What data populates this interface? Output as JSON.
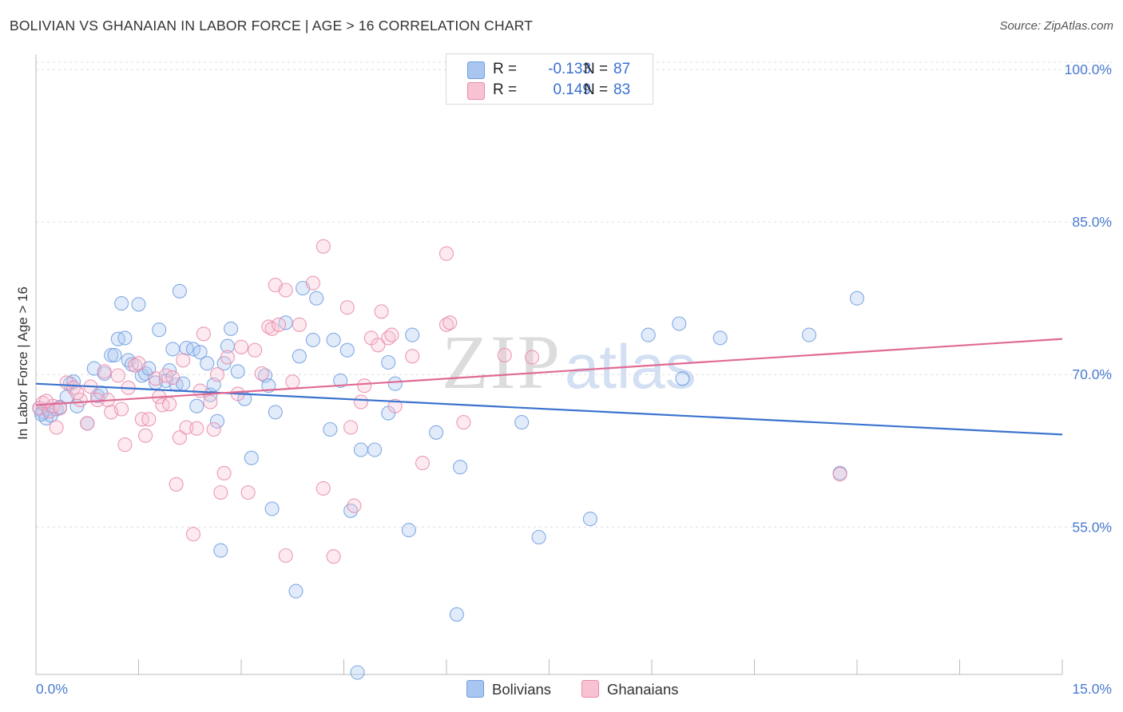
{
  "header": {
    "title": "BOLIVIAN VS GHANAIAN IN LABOR FORCE | AGE > 16 CORRELATION CHART",
    "source": "Source: ZipAtlas.com"
  },
  "legend": {
    "rows": [
      {
        "r_label": "R =",
        "r_value": "-0.133",
        "n_label": "N =",
        "n_value": "87",
        "color": "#a9c6f0",
        "border": "#6f9de0"
      },
      {
        "r_label": "R =",
        "r_value": "0.149",
        "n_label": "N =",
        "n_value": "83",
        "color": "#f7c3d3",
        "border": "#e98aa8"
      }
    ],
    "bottom": [
      {
        "label": "Bolivians",
        "color": "#a9c6f0",
        "border": "#6f9de0"
      },
      {
        "label": "Ghanaians",
        "color": "#f7c3d3",
        "border": "#e98aa8"
      }
    ]
  },
  "watermark": {
    "zip": "ZIP",
    "atlas": "atlas"
  },
  "chart_data": {
    "type": "scatter",
    "title": "BOLIVIAN VS GHANAIAN IN LABOR FORCE | AGE > 16 CORRELATION CHART",
    "xlabel": "",
    "ylabel": "In Labor Force | Age > 16",
    "xlim": [
      0,
      15
    ],
    "ylim": [
      40.5,
      101.5
    ],
    "x_tick_labels": [
      "0.0%",
      "15.0%"
    ],
    "y_ticks": [
      55,
      70,
      85,
      100
    ],
    "y_tick_labels": [
      "55.0%",
      "70.0%",
      "85.0%",
      "100.0%"
    ],
    "grid": true,
    "legend_position": "top-center",
    "series": [
      {
        "name": "Bolivians",
        "color": "#6f9de0",
        "trend": {
          "x": [
            0,
            15
          ],
          "y": [
            69.1,
            64.1
          ]
        },
        "points": [
          [
            0.05,
            66.7
          ],
          [
            0.1,
            66.3
          ],
          [
            0.15,
            65.7
          ],
          [
            0.18,
            66.6
          ],
          [
            0.22,
            66.0
          ],
          [
            0.3,
            66.6
          ],
          [
            0.35,
            66.8
          ],
          [
            0.45,
            67.8
          ],
          [
            0.5,
            69.1
          ],
          [
            0.55,
            69.3
          ],
          [
            0.6,
            66.9
          ],
          [
            0.75,
            65.2
          ],
          [
            0.85,
            70.6
          ],
          [
            0.9,
            67.9
          ],
          [
            0.95,
            68.2
          ],
          [
            1.0,
            70.1
          ],
          [
            1.1,
            71.9
          ],
          [
            1.15,
            71.9
          ],
          [
            1.2,
            73.5
          ],
          [
            1.25,
            77.0
          ],
          [
            1.3,
            73.6
          ],
          [
            1.35,
            71.4
          ],
          [
            1.4,
            71.0
          ],
          [
            1.5,
            76.9
          ],
          [
            1.55,
            69.9
          ],
          [
            1.6,
            70.1
          ],
          [
            1.65,
            70.6
          ],
          [
            1.75,
            69.2
          ],
          [
            1.8,
            74.4
          ],
          [
            1.9,
            69.4
          ],
          [
            1.95,
            70.4
          ],
          [
            2.0,
            72.5
          ],
          [
            2.05,
            69.0
          ],
          [
            2.1,
            78.2
          ],
          [
            2.15,
            69.1
          ],
          [
            2.2,
            72.6
          ],
          [
            2.3,
            72.5
          ],
          [
            2.35,
            66.9
          ],
          [
            2.4,
            72.2
          ],
          [
            2.5,
            71.1
          ],
          [
            2.55,
            68.0
          ],
          [
            2.6,
            69.0
          ],
          [
            2.65,
            65.4
          ],
          [
            2.7,
            52.7
          ],
          [
            2.75,
            71.1
          ],
          [
            2.8,
            72.8
          ],
          [
            2.85,
            74.5
          ],
          [
            2.95,
            70.3
          ],
          [
            3.05,
            67.6
          ],
          [
            3.15,
            61.8
          ],
          [
            3.35,
            69.9
          ],
          [
            3.4,
            68.9
          ],
          [
            3.45,
            56.8
          ],
          [
            3.5,
            66.3
          ],
          [
            3.65,
            75.1
          ],
          [
            3.8,
            48.7
          ],
          [
            3.85,
            71.8
          ],
          [
            3.9,
            78.5
          ],
          [
            4.05,
            73.4
          ],
          [
            4.1,
            77.5
          ],
          [
            4.3,
            64.6
          ],
          [
            4.35,
            73.4
          ],
          [
            4.45,
            69.4
          ],
          [
            4.55,
            72.4
          ],
          [
            4.6,
            56.6
          ],
          [
            4.7,
            40.7
          ],
          [
            4.75,
            62.6
          ],
          [
            4.95,
            62.6
          ],
          [
            5.15,
            66.2
          ],
          [
            5.15,
            71.2
          ],
          [
            5.25,
            69.1
          ],
          [
            5.45,
            54.7
          ],
          [
            5.5,
            73.9
          ],
          [
            5.85,
            64.3
          ],
          [
            6.15,
            46.4
          ],
          [
            6.2,
            60.9
          ],
          [
            7.1,
            65.3
          ],
          [
            7.35,
            54.0
          ],
          [
            8.1,
            55.8
          ],
          [
            8.95,
            73.9
          ],
          [
            9.4,
            75.0
          ],
          [
            9.45,
            69.6
          ],
          [
            10.0,
            73.6
          ],
          [
            11.3,
            73.9
          ],
          [
            11.75,
            60.3
          ],
          [
            12.0,
            77.5
          ],
          [
            0.08,
            66.1
          ]
        ]
      },
      {
        "name": "Ghanaians",
        "color": "#e98aa8",
        "trend": {
          "x": [
            0,
            15
          ],
          "y": [
            67.0,
            73.5
          ]
        },
        "points": [
          [
            0.05,
            66.7
          ],
          [
            0.1,
            67.2
          ],
          [
            0.2,
            66.4
          ],
          [
            0.25,
            66.9
          ],
          [
            0.3,
            64.8
          ],
          [
            0.35,
            66.7
          ],
          [
            0.45,
            69.2
          ],
          [
            0.55,
            68.7
          ],
          [
            0.65,
            67.5
          ],
          [
            0.75,
            65.2
          ],
          [
            0.8,
            68.8
          ],
          [
            0.9,
            67.5
          ],
          [
            1.0,
            70.3
          ],
          [
            1.05,
            67.5
          ],
          [
            1.1,
            66.3
          ],
          [
            1.2,
            69.9
          ],
          [
            1.25,
            66.6
          ],
          [
            1.3,
            63.1
          ],
          [
            1.35,
            68.7
          ],
          [
            1.45,
            70.9
          ],
          [
            1.55,
            65.6
          ],
          [
            1.6,
            64.0
          ],
          [
            1.65,
            65.6
          ],
          [
            1.75,
            69.6
          ],
          [
            1.8,
            67.8
          ],
          [
            1.85,
            67.0
          ],
          [
            1.9,
            69.9
          ],
          [
            1.95,
            67.1
          ],
          [
            2.0,
            69.7
          ],
          [
            2.05,
            59.2
          ],
          [
            2.1,
            63.8
          ],
          [
            2.15,
            71.4
          ],
          [
            2.2,
            64.8
          ],
          [
            2.3,
            54.3
          ],
          [
            2.35,
            64.7
          ],
          [
            2.4,
            68.4
          ],
          [
            2.45,
            74.0
          ],
          [
            2.55,
            67.3
          ],
          [
            2.6,
            64.6
          ],
          [
            2.65,
            70.0
          ],
          [
            2.7,
            58.4
          ],
          [
            2.75,
            60.3
          ],
          [
            2.8,
            71.7
          ],
          [
            2.95,
            68.1
          ],
          [
            3.0,
            72.7
          ],
          [
            3.1,
            58.4
          ],
          [
            3.2,
            72.4
          ],
          [
            3.3,
            70.1
          ],
          [
            3.4,
            74.7
          ],
          [
            3.45,
            74.5
          ],
          [
            3.5,
            78.8
          ],
          [
            3.55,
            74.9
          ],
          [
            3.65,
            78.3
          ],
          [
            3.65,
            52.2
          ],
          [
            3.75,
            69.3
          ],
          [
            3.85,
            74.9
          ],
          [
            4.05,
            79.0
          ],
          [
            4.2,
            58.8
          ],
          [
            4.2,
            82.6
          ],
          [
            4.35,
            52.1
          ],
          [
            4.55,
            76.6
          ],
          [
            4.6,
            64.8
          ],
          [
            4.65,
            57.1
          ],
          [
            4.75,
            67.3
          ],
          [
            4.8,
            68.9
          ],
          [
            4.9,
            73.6
          ],
          [
            5.0,
            72.9
          ],
          [
            5.05,
            76.2
          ],
          [
            5.15,
            73.6
          ],
          [
            5.2,
            73.9
          ],
          [
            5.25,
            66.9
          ],
          [
            5.5,
            71.8
          ],
          [
            5.65,
            61.3
          ],
          [
            6.0,
            81.9
          ],
          [
            6.0,
            74.9
          ],
          [
            6.05,
            75.1
          ],
          [
            6.25,
            65.3
          ],
          [
            6.85,
            71.9
          ],
          [
            7.25,
            71.7
          ],
          [
            11.75,
            60.2
          ],
          [
            0.15,
            67.4
          ],
          [
            1.5,
            71.1
          ],
          [
            0.6,
            68.2
          ]
        ]
      }
    ]
  }
}
